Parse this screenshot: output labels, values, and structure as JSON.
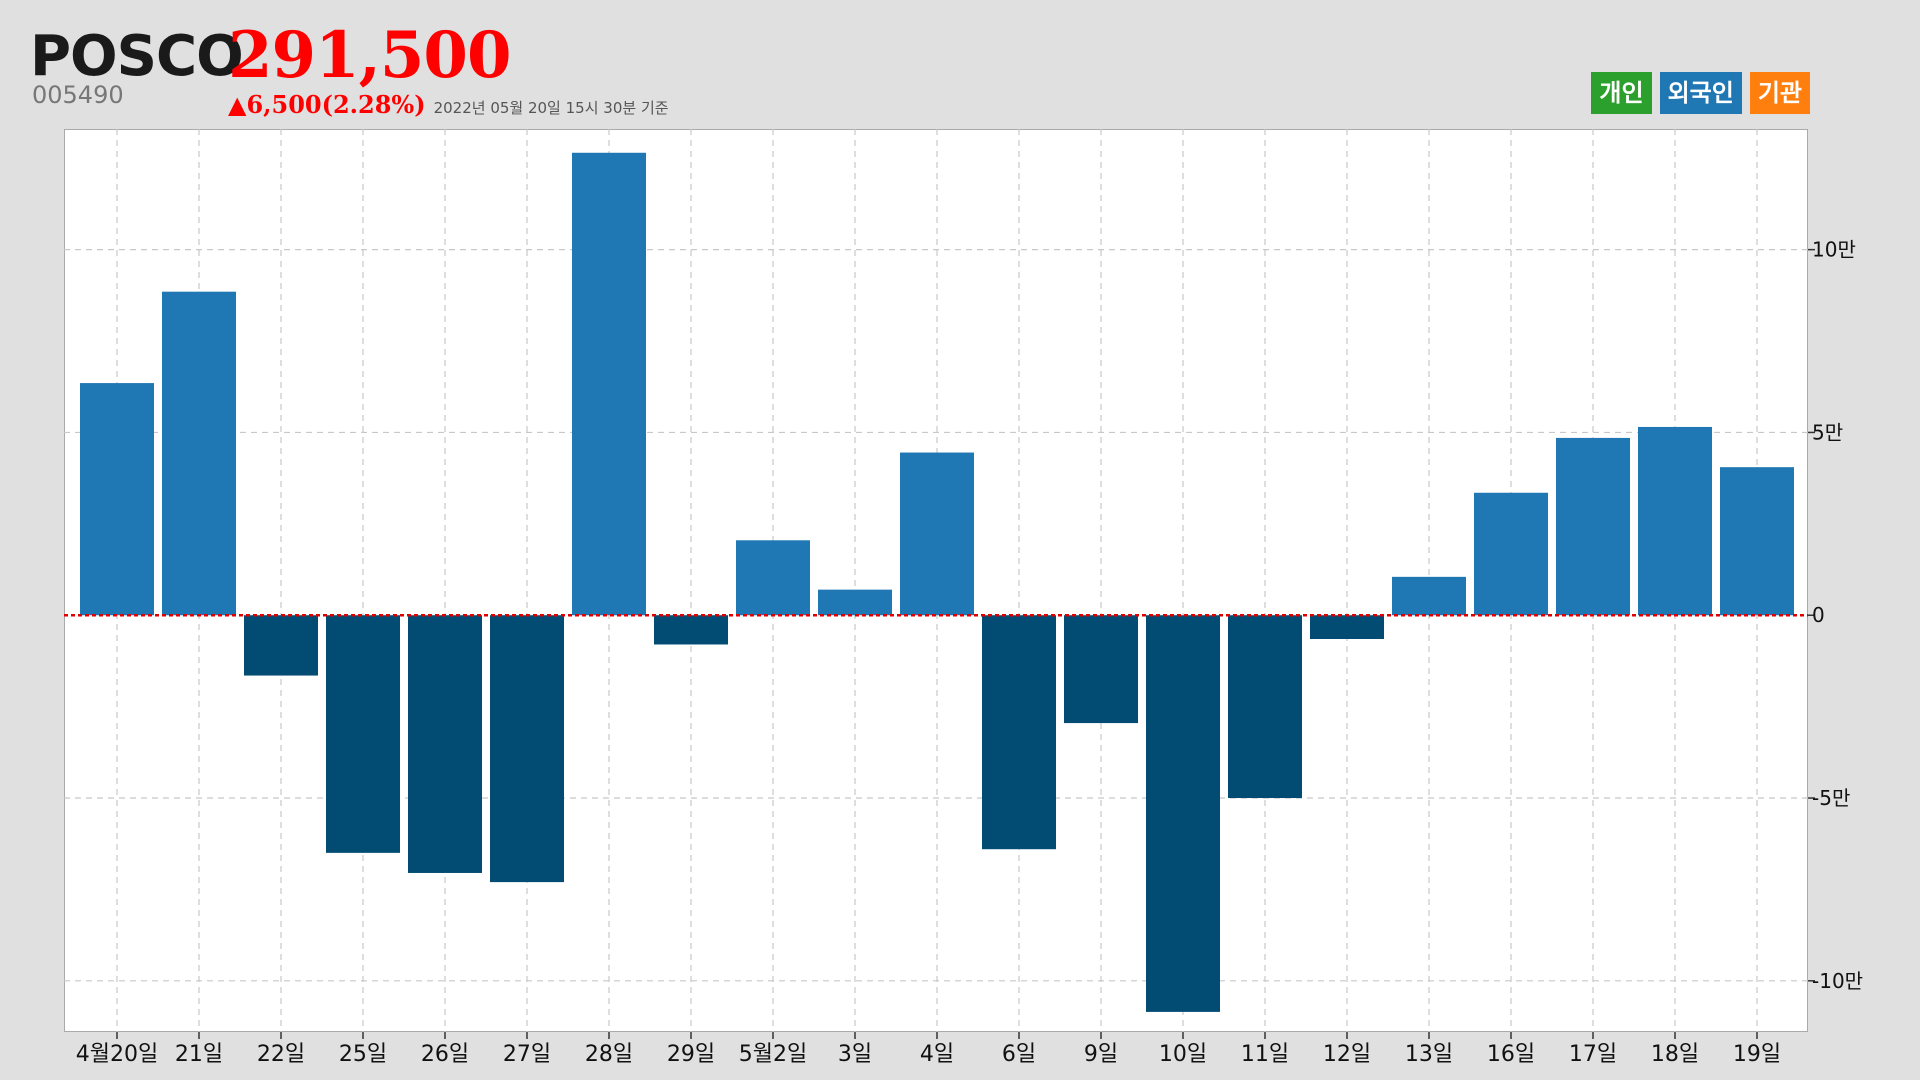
{
  "header": {
    "name": "POSCO",
    "price": "291,500",
    "code": "005490",
    "change": "▲6,500(2.28%)",
    "timestamp": "2022년 05월 20일 15시 30분 기준"
  },
  "legend": [
    {
      "label": "개인",
      "color": "#2ca02c"
    },
    {
      "label": "외국인",
      "color": "#1f77b4"
    },
    {
      "label": "기관",
      "color": "#ff7f0e"
    }
  ],
  "colors": {
    "positive": "#1f77b4",
    "negative": "#024c73",
    "zero_line": "#e00000",
    "grid": "#c8c8c8"
  },
  "chart_data": {
    "type": "bar",
    "title": "",
    "xlabel": "",
    "ylabel": "",
    "categories": [
      "4월20일",
      "21일",
      "22일",
      "25일",
      "26일",
      "27일",
      "28일",
      "29일",
      "5월2일",
      "3일",
      "4일",
      "6일",
      "9일",
      "10일",
      "11일",
      "12일",
      "13일",
      "16일",
      "17일",
      "18일",
      "19일"
    ],
    "series": [
      {
        "values": [
          63500,
          88500,
          -16500,
          -65000,
          -70500,
          -73000,
          126500,
          -8000,
          20500,
          7000,
          44500,
          -64000,
          -29500,
          -108500,
          -50000,
          -6500,
          10500,
          33500,
          48500,
          51500,
          40500
        ]
      }
    ],
    "ylim": [
      -114000,
      133000
    ],
    "yticks": [
      -100000,
      -50000,
      0,
      50000,
      100000
    ],
    "ytick_labels": [
      "-10만",
      "-5만",
      "0",
      "5만",
      "10만"
    ],
    "grid": true,
    "y_axis_position": "right",
    "legend_position": "top-right"
  }
}
